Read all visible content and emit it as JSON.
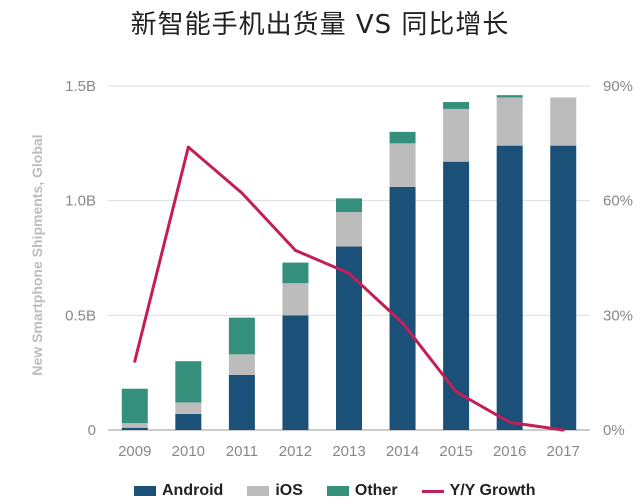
{
  "title": "新智能手机出货量 VS 同比增长",
  "chart_data": {
    "type": "bar",
    "categories": [
      "2009",
      "2010",
      "2011",
      "2012",
      "2013",
      "2014",
      "2015",
      "2016",
      "2017"
    ],
    "series": [
      {
        "name": "Android",
        "type": "bar",
        "color": "#1b5178",
        "values": [
          0.01,
          0.07,
          0.24,
          0.5,
          0.8,
          1.06,
          1.17,
          1.24,
          1.24
        ]
      },
      {
        "name": "iOS",
        "type": "bar",
        "color": "#bcbcbc",
        "values": [
          0.02,
          0.05,
          0.09,
          0.14,
          0.15,
          0.19,
          0.23,
          0.21,
          0.21
        ]
      },
      {
        "name": "Other",
        "type": "bar",
        "color": "#34907a",
        "values": [
          0.15,
          0.18,
          0.16,
          0.09,
          0.06,
          0.05,
          0.03,
          0.01,
          0.0
        ]
      },
      {
        "name": "Y/Y Growth",
        "type": "line",
        "axis": "right",
        "color": "#c41e5a",
        "values": [
          18,
          74,
          62,
          47,
          41,
          28,
          10,
          2,
          0
        ]
      }
    ],
    "ylabel": "New Smartphone Shipments, Global",
    "ylim": [
      0,
      1.5
    ],
    "y2lim": [
      0,
      90
    ],
    "yticks": [
      "0",
      "0.5B",
      "1.0B",
      "1.5B"
    ],
    "y2ticks": [
      "0%",
      "30%",
      "60%",
      "90%"
    ],
    "legend": "bottom"
  }
}
